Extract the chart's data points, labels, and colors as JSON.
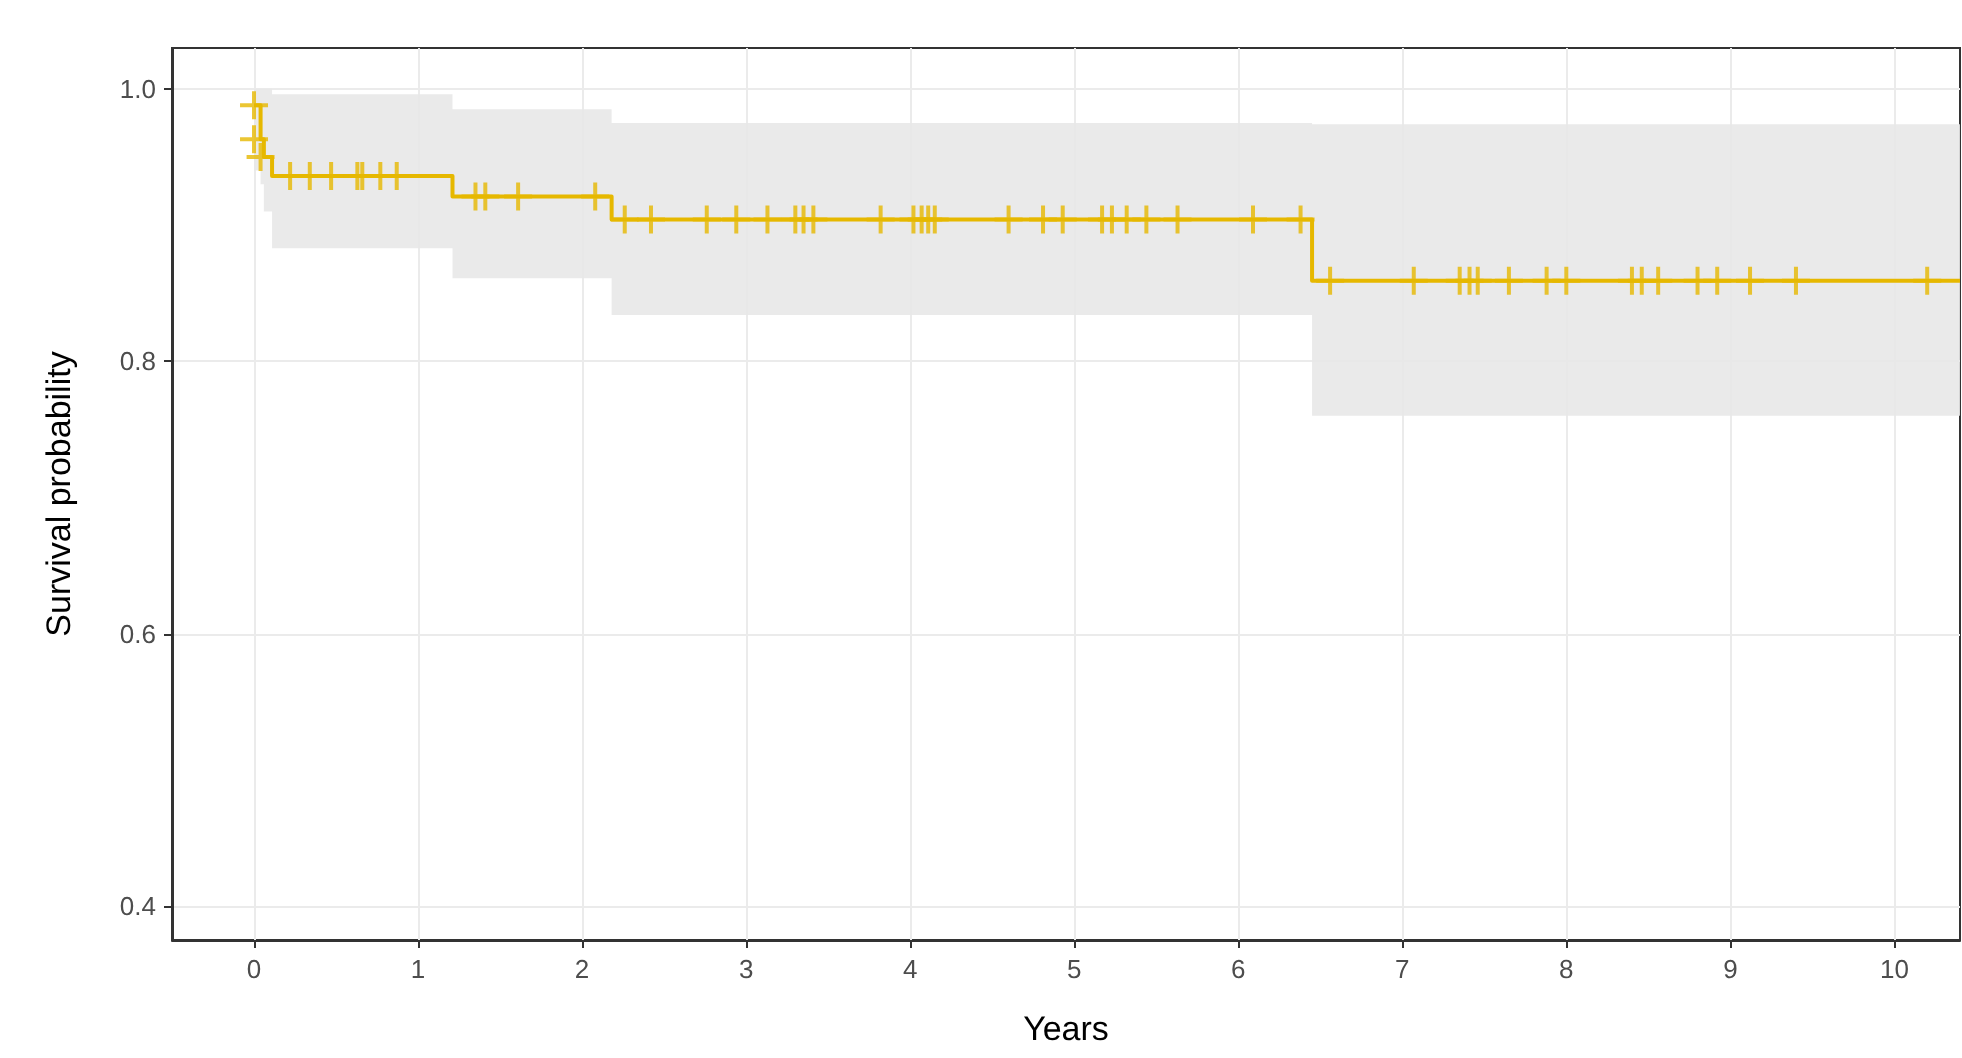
{
  "chart_data": {
    "type": "step",
    "xlabel": "Years",
    "ylabel": "Survival probability",
    "xlim": [
      -0.5,
      10.4
    ],
    "ylim": [
      0.375,
      1.03
    ],
    "xticks": [
      0,
      1,
      2,
      3,
      4,
      5,
      6,
      7,
      8,
      9,
      10
    ],
    "yticks": [
      0.4,
      0.6,
      0.8,
      {
        "value": 1.0,
        "label": "1.0"
      }
    ],
    "grid": true,
    "series": [
      {
        "color": "#e6b800",
        "x": [
          0,
          0.04,
          0.06,
          0.11,
          1.21,
          2.18,
          6.45,
          10.4
        ],
        "values": [
          0.988,
          0.963,
          0.95,
          0.936,
          0.921,
          0.904,
          0.859,
          0.859
        ],
        "lower": [
          0.94,
          0.93,
          0.91,
          0.883,
          0.861,
          0.834,
          0.76,
          0.76
        ],
        "upper": [
          1.0,
          1.0,
          1.0,
          0.996,
          0.985,
          0.975,
          0.974,
          0.974
        ],
        "marker": "none"
      },
      {
        "type": "scatter",
        "color": "#e6b800",
        "marker": "cross",
        "x": [
          0,
          0,
          0.04,
          0.22,
          0.34,
          0.47,
          0.63,
          0.66,
          0.77,
          0.87,
          1.35,
          1.41,
          1.61,
          2.08,
          2.26,
          2.42,
          2.76,
          2.94,
          3.13,
          3.3,
          3.35,
          3.41,
          3.82,
          4.02,
          4.07,
          4.11,
          4.15,
          4.6,
          4.81,
          4.93,
          5.17,
          5.23,
          5.32,
          5.44,
          5.63,
          6.09,
          6.38,
          6.56,
          7.07,
          7.35,
          7.41,
          7.46,
          7.65,
          7.88,
          8.0,
          8.4,
          8.46,
          8.56,
          8.8,
          8.92,
          9.12,
          9.4,
          10.2
        ],
        "values": [
          0.988,
          0.963,
          0.95,
          0.936,
          0.936,
          0.936,
          0.936,
          0.936,
          0.936,
          0.936,
          0.921,
          0.921,
          0.921,
          0.921,
          0.904,
          0.904,
          0.904,
          0.904,
          0.904,
          0.904,
          0.904,
          0.904,
          0.904,
          0.904,
          0.904,
          0.904,
          0.904,
          0.904,
          0.904,
          0.904,
          0.904,
          0.904,
          0.904,
          0.904,
          0.904,
          0.904,
          0.904,
          0.859,
          0.859,
          0.859,
          0.859,
          0.859,
          0.859,
          0.859,
          0.859,
          0.859,
          0.859,
          0.859,
          0.859,
          0.859,
          0.859,
          0.859,
          0.859
        ]
      }
    ]
  }
}
